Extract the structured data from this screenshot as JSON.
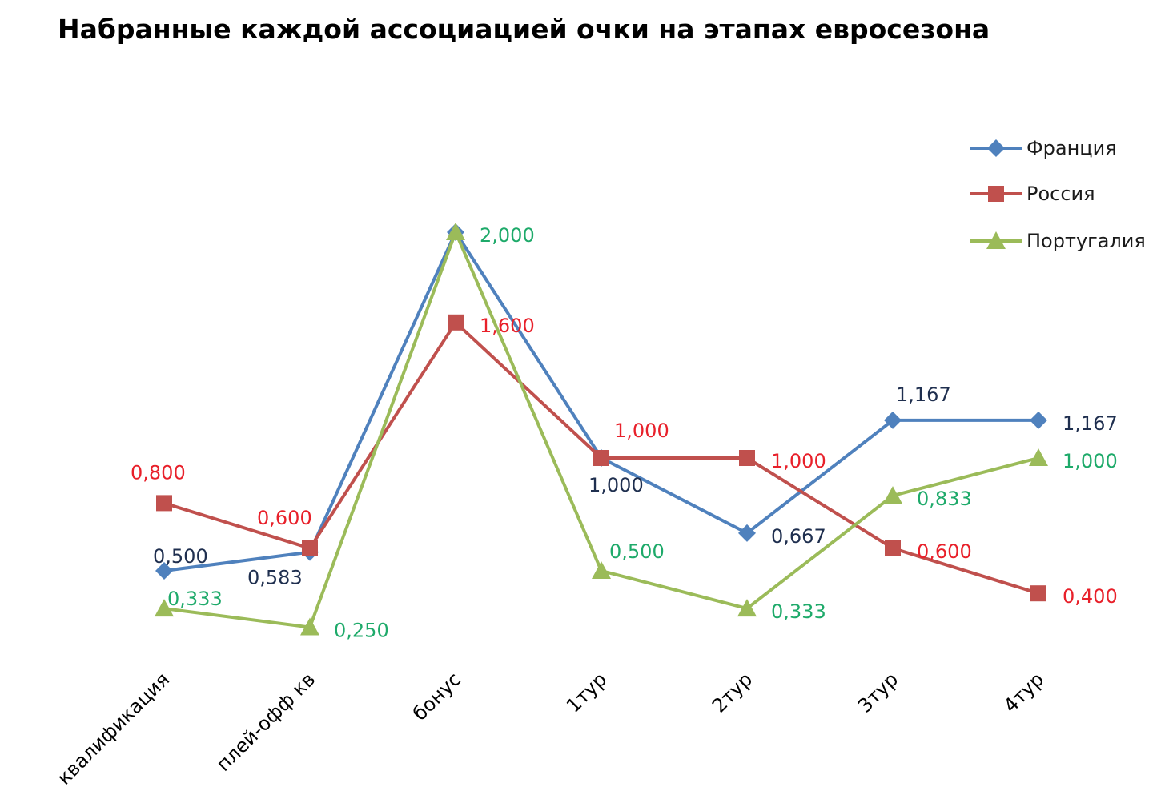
{
  "chart_data": {
    "type": "line",
    "title": "Набранные каждой ассоциацией очки на этапах евросезона",
    "xlabel": "",
    "ylabel": "",
    "categories": [
      "квалификация",
      "плей-офф кв",
      "бонус",
      "1тур",
      "2тур",
      "3тур",
      "4тур"
    ],
    "ylim": [
      0,
      2.0
    ],
    "grid": false,
    "legend_position": "top-right",
    "series": [
      {
        "name": "Франция",
        "color": "#4F81BD",
        "label_color": "#1F2F4F",
        "marker": "diamond",
        "values": [
          0.5,
          0.583,
          2.0,
          1.0,
          0.667,
          1.167,
          1.167
        ],
        "labels": [
          "0,500",
          "0,583",
          "",
          "1,000",
          "0,667",
          "1,167",
          "1,167"
        ]
      },
      {
        "name": "Россия",
        "color": "#C0504D",
        "label_color": "#E8202A",
        "marker": "square",
        "values": [
          0.8,
          0.6,
          1.6,
          1.0,
          1.0,
          0.6,
          0.4
        ],
        "labels": [
          "0,800",
          "0,600",
          "1,600",
          "1,000",
          "1,000",
          "0,600",
          "0,400"
        ]
      },
      {
        "name": "Португалия",
        "color": "#9BBB59",
        "label_color": "#1EAA6A",
        "marker": "triangle",
        "values": [
          0.333,
          0.25,
          2.0,
          0.5,
          0.333,
          0.833,
          1.0
        ],
        "labels": [
          "0,333",
          "0,250",
          "2,000",
          "0,500",
          "0,333",
          "0,833",
          "1,000"
        ]
      }
    ]
  }
}
